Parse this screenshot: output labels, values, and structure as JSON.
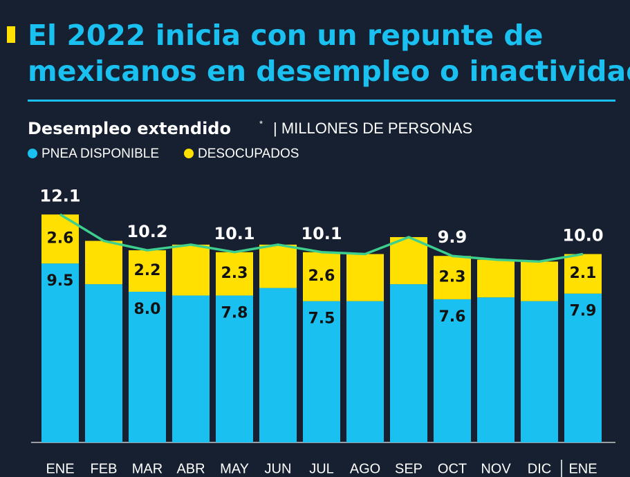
{
  "chart_data": {
    "type": "stacked-bar",
    "title_lines": [
      "El 2022 inicia con un repunte de",
      "mexicanos en desempleo o inactividad"
    ],
    "subtitle": "Desempleo extendido",
    "subtitle_mark": "*",
    "unit_label": "| MILLONES DE PERSONAS",
    "categories": [
      "ENE",
      "FEB",
      "MAR",
      "ABR",
      "MAY",
      "JUN",
      "JUL",
      "AGO",
      "SEP",
      "OCT",
      "NOV",
      "DIC",
      "ENE"
    ],
    "series": [
      {
        "name": "PNEA DISPONIBLE",
        "color": "#19c0f0",
        "values": [
          9.5,
          8.4,
          8.0,
          7.8,
          7.8,
          8.2,
          7.5,
          7.5,
          8.4,
          7.6,
          7.7,
          7.5,
          7.9
        ],
        "value_labels": [
          "9.5",
          null,
          "8.0",
          null,
          "7.8",
          null,
          "7.5",
          null,
          null,
          "7.6",
          null,
          null,
          "7.9"
        ]
      },
      {
        "name": "DESOCUPADOS",
        "color": "#ffe000",
        "values": [
          2.6,
          2.3,
          2.2,
          2.7,
          2.3,
          2.3,
          2.6,
          2.5,
          2.5,
          2.3,
          2.0,
          2.1,
          2.1
        ],
        "value_labels": [
          "2.6",
          null,
          "2.2",
          null,
          "2.3",
          null,
          "2.6",
          null,
          null,
          "2.3",
          null,
          null,
          "2.1"
        ]
      }
    ],
    "totals": [
      12.1,
      10.7,
      10.2,
      10.5,
      10.1,
      10.5,
      10.1,
      10.0,
      10.9,
      9.9,
      9.7,
      9.6,
      10.0
    ],
    "total_labels": [
      "12.1",
      null,
      "10.2",
      null,
      "10.1",
      null,
      "10.1",
      null,
      null,
      "9.9",
      null,
      null,
      "10.0"
    ],
    "total_line_color": "#3ecf8e",
    "ylim": [
      0,
      12
    ]
  }
}
